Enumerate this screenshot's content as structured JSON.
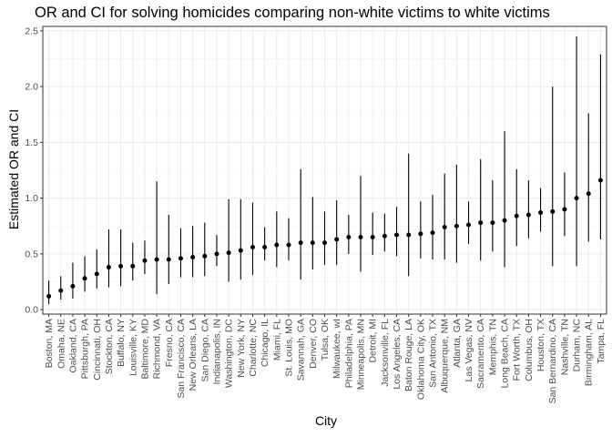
{
  "chart_data": {
    "type": "scatter",
    "title": "OR and CI for solving homicides comparing non-white victims to white victims",
    "xlabel": "City",
    "ylabel": "Estimated OR and CI",
    "ylim": [
      -0.04,
      2.54
    ],
    "yticks": [
      "0.0",
      "0.5",
      "1.0",
      "1.5",
      "2.0",
      "2.5"
    ],
    "ytick_values": [
      0,
      0.5,
      1.0,
      1.5,
      2.0,
      2.5
    ],
    "grid": true,
    "legend": "none",
    "colors": {
      "point": "#000000",
      "grid_major": "#ebebeb",
      "grid_minor": "#f5f5f5",
      "panel_border": "#333333",
      "tick_text": "#4d4d4d"
    },
    "categories": [
      "Boston, MA",
      "Omaha, NE",
      "Oakland, CA",
      "Pittsburgh, PA",
      "Cincinnati, OH",
      "Stockton, CA",
      "Buffalo, NY",
      "Louisville, KY",
      "Baltimore, MD",
      "Richmond, VA",
      "Fresno, CA",
      "San Francisco, CA",
      "New Orleans, LA",
      "San Diego, CA",
      "Indianapolis, IN",
      "Washington, DC",
      "New York, NY",
      "Charlotte, NC",
      "Chicago, IL",
      "Miami, FL",
      "St. Louis, MO",
      "Savannah, GA",
      "Denver, CO",
      "Tulsa, OK",
      "Milwaukee, wI",
      "Philadelphia, PA",
      "Minneapolis, MN",
      "Detroit, MI",
      "Jacksonville, FL",
      "Los Angeles, CA",
      "Baton Rouge, LA",
      "Oklahoma City, OK",
      "San Antonio, TX",
      "Albuquerque, NM",
      "Atlanta, GA",
      "Las Vegas, NV",
      "Sacramento, CA",
      "Memphis, TN",
      "Long Beach, CA",
      "Fort Worth, TX",
      "Columbus, OH",
      "Houston, TX",
      "San Bernardino, CA",
      "Nashville, TN",
      "Durham, NC",
      "Birmingham, AL",
      "Tampa, FL"
    ],
    "estimate": [
      0.12,
      0.17,
      0.21,
      0.28,
      0.32,
      0.38,
      0.39,
      0.39,
      0.44,
      0.45,
      0.45,
      0.46,
      0.47,
      0.48,
      0.5,
      0.51,
      0.53,
      0.56,
      0.56,
      0.58,
      0.58,
      0.6,
      0.6,
      0.6,
      0.63,
      0.65,
      0.65,
      0.65,
      0.66,
      0.67,
      0.67,
      0.68,
      0.69,
      0.74,
      0.75,
      0.76,
      0.78,
      0.78,
      0.8,
      0.84,
      0.85,
      0.87,
      0.88,
      0.9,
      1.0,
      1.04,
      1.16
    ],
    "ci_low": [
      0.05,
      0.09,
      0.1,
      0.16,
      0.19,
      0.2,
      0.21,
      0.26,
      0.32,
      0.14,
      0.23,
      0.29,
      0.29,
      0.3,
      0.39,
      0.25,
      0.27,
      0.31,
      0.44,
      0.38,
      0.44,
      0.27,
      0.36,
      0.4,
      0.4,
      0.5,
      0.34,
      0.49,
      0.52,
      0.48,
      0.3,
      0.46,
      0.45,
      0.45,
      0.42,
      0.59,
      0.44,
      0.52,
      0.38,
      0.57,
      0.64,
      0.7,
      0.39,
      0.66,
      0.39,
      0.61,
      0.63
    ],
    "ci_high": [
      0.26,
      0.3,
      0.42,
      0.48,
      0.54,
      0.72,
      0.72,
      0.6,
      0.62,
      1.15,
      0.85,
      0.73,
      0.75,
      0.78,
      0.67,
      0.99,
      0.99,
      0.96,
      0.74,
      0.88,
      0.82,
      1.26,
      1.01,
      0.88,
      0.98,
      0.85,
      1.2,
      0.87,
      0.86,
      0.92,
      1.4,
      0.97,
      1.03,
      1.22,
      1.3,
      0.97,
      1.35,
      1.16,
      1.6,
      1.26,
      1.16,
      1.09,
      2.0,
      1.23,
      2.45,
      1.76,
      2.29
    ]
  }
}
